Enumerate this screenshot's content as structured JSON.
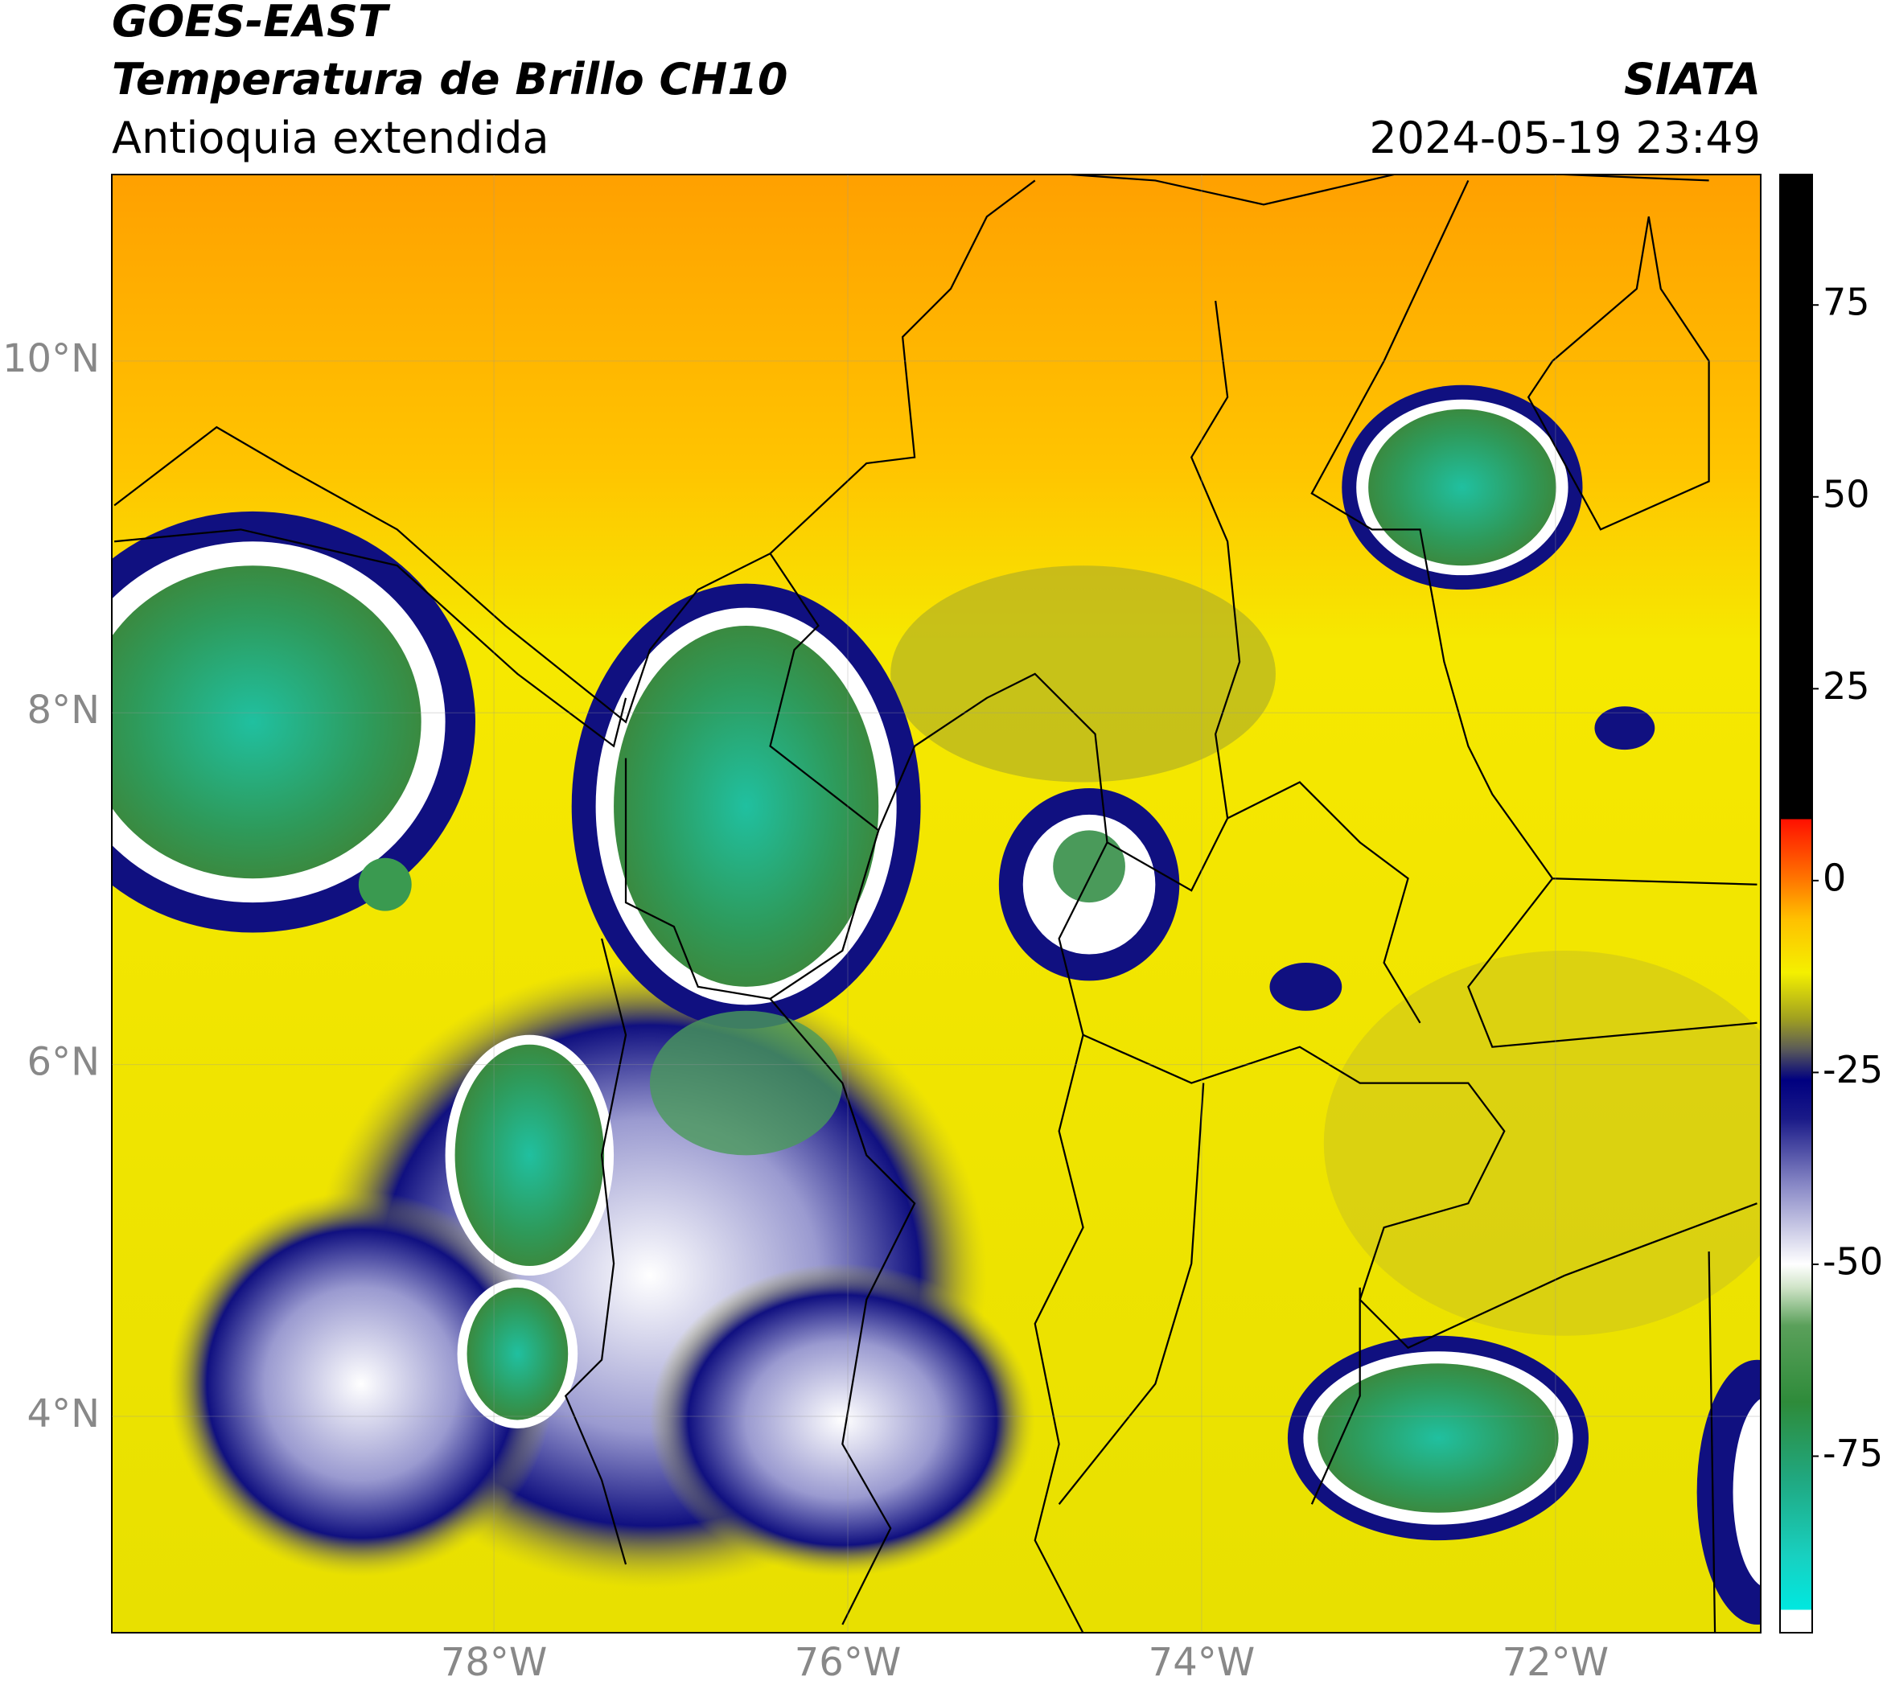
{
  "header": {
    "title": "GOES-EAST",
    "subtitle": "Temperatura de Brillo CH10",
    "region": "Antioquia extendida",
    "source": "SIATA",
    "timestamp": "2024-05-19 23:49"
  },
  "map": {
    "xlim": [
      -80.16,
      -70.84
    ],
    "ylim": [
      2.77,
      11.06
    ],
    "xticks": [
      {
        "value": -78,
        "label": "78°W"
      },
      {
        "value": -76,
        "label": "76°W"
      },
      {
        "value": -74,
        "label": "74°W"
      },
      {
        "value": -72,
        "label": "72°W"
      }
    ],
    "yticks": [
      {
        "value": 10,
        "label": "10°N"
      },
      {
        "value": 8,
        "label": "8°N"
      },
      {
        "value": 6,
        "label": "6°N"
      },
      {
        "value": 4,
        "label": "4°N"
      }
    ],
    "grid": true
  },
  "colorbar": {
    "range": [
      -98,
      92
    ],
    "ticks": [
      75,
      50,
      25,
      0,
      -25,
      -50,
      -75
    ],
    "stops": [
      {
        "value": -98,
        "color": "#ffffff"
      },
      {
        "value": -95,
        "color": "#ffffff"
      },
      {
        "value": -95,
        "color": "#00e8e0"
      },
      {
        "value": -88,
        "color": "#18d0c0"
      },
      {
        "value": -78,
        "color": "#20a880"
      },
      {
        "value": -68,
        "color": "#2e8b3a"
      },
      {
        "value": -58,
        "color": "#5aa05a"
      },
      {
        "value": -53,
        "color": "#d0e4c8"
      },
      {
        "value": -50,
        "color": "#ffffff"
      },
      {
        "value": -40,
        "color": "#8c8cc8"
      },
      {
        "value": -31,
        "color": "#1a1a88"
      },
      {
        "value": -26,
        "color": "#000080"
      },
      {
        "value": -22,
        "color": "#5a5a58"
      },
      {
        "value": -18,
        "color": "#a0a020"
      },
      {
        "value": -12,
        "color": "#f4f000"
      },
      {
        "value": -5,
        "color": "#ffc000"
      },
      {
        "value": 0,
        "color": "#ff7800"
      },
      {
        "value": 8,
        "color": "#ff1000"
      },
      {
        "value": 8,
        "color": "#000000"
      },
      {
        "value": 92,
        "color": "#000000"
      }
    ]
  }
}
